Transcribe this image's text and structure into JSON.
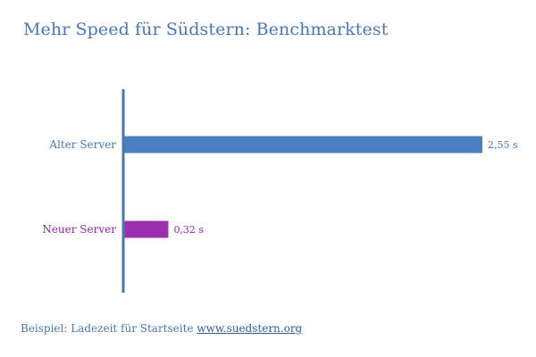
{
  "chart_data": {
    "type": "bar",
    "orientation": "horizontal",
    "title": "Mehr Speed für Südstern: Benchmarktest",
    "categories": [
      "Alter Server",
      "Neuer Server"
    ],
    "values": [
      2.55,
      0.32
    ],
    "data_labels": [
      "2,55 s",
      "0,32 s"
    ],
    "colors": [
      "#4a80bf",
      "#9b2fae"
    ],
    "label_colors": [
      "#4a78ad",
      "#8e2a9f"
    ],
    "xlim": [
      0,
      2.55
    ],
    "axis_color": "#4a78ad",
    "grid": false,
    "legend": "none"
  },
  "footer": {
    "text": "Beispiel: Ladezeit für Startseite ",
    "link_text": "www.suedstern.org"
  }
}
